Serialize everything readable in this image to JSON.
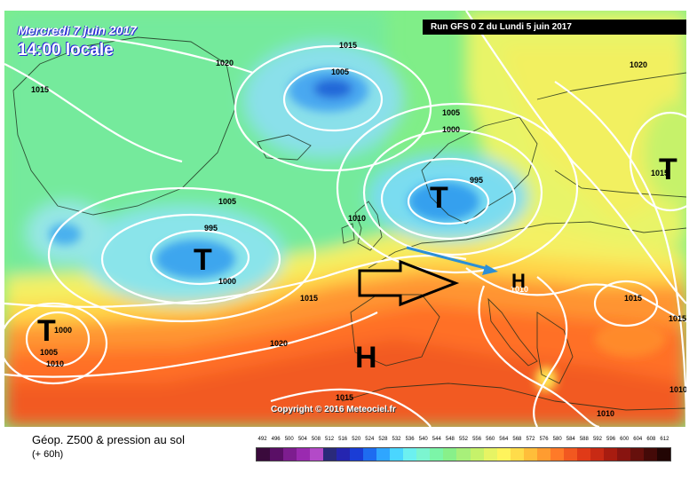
{
  "header": {
    "date": "Mercredi 7 juin 2017",
    "time": "14:00 locale",
    "run": "Run GFS 0 Z du Lundi 5 juin 2017"
  },
  "copyright": "Copyright © 2016 Meteociel.fr",
  "footer": {
    "title": "Géop. Z500 & pression au sol",
    "subtitle": "(+ 60h)"
  },
  "legend": {
    "values": [
      "492",
      "496",
      "500",
      "504",
      "508",
      "512",
      "516",
      "520",
      "524",
      "528",
      "532",
      "536",
      "540",
      "544",
      "548",
      "552",
      "556",
      "560",
      "564",
      "568",
      "572",
      "576",
      "580",
      "584",
      "588",
      "592",
      "596",
      "600",
      "604",
      "608",
      "612"
    ],
    "colors": [
      "#3a0a3c",
      "#5a0f66",
      "#7d1d8f",
      "#9a2ab0",
      "#b34ac8",
      "#2a2a7a",
      "#2525b0",
      "#1a3dd6",
      "#1e6cf0",
      "#2fa6ff",
      "#4ad6ff",
      "#6cf0f0",
      "#7cf5d0",
      "#7cf5a8",
      "#88f08a",
      "#a8f07a",
      "#c6f26a",
      "#e6f464",
      "#fff45c",
      "#ffdc4a",
      "#ffbe3a",
      "#ff9c30",
      "#ff7a28",
      "#f25820",
      "#e03a18",
      "#c82a14",
      "#a81c10",
      "#881410",
      "#66100c",
      "#440a08",
      "#220504"
    ]
  },
  "map": {
    "isobars": [
      "1020",
      "1015",
      "1015",
      "1005",
      "1005",
      "1000",
      "995",
      "1020",
      "1010",
      "1005",
      "995",
      "1000",
      "1015",
      "1020",
      "1000",
      "1005",
      "1010",
      "1015",
      "1010",
      "1015",
      "1015",
      "1015",
      "1010",
      "1010"
    ],
    "centers": [
      "T",
      "T",
      "T",
      "T",
      "H",
      "H"
    ],
    "h_center_value": "1020"
  },
  "colors": {
    "arrow_blue": "#2b8fd6",
    "isobar": "#ffffff"
  }
}
